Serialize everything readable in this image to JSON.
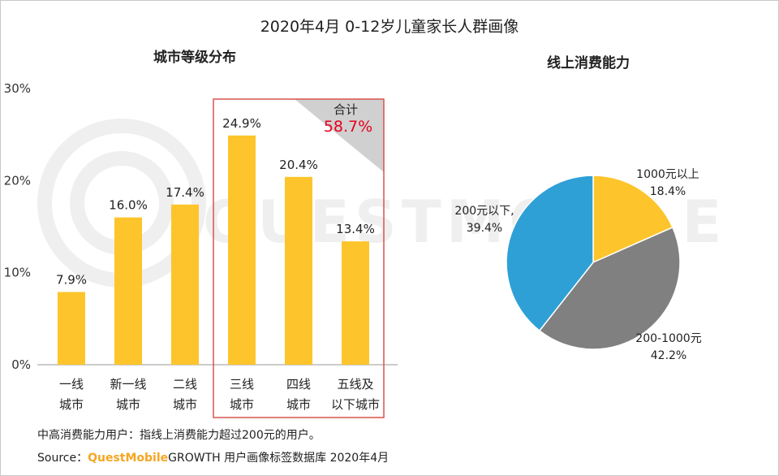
{
  "title": "2020年4月 0-12岁儿童家长人群画像",
  "watermark": "QUESTMOBILE",
  "colors": {
    "bar": "#FDC52B",
    "highlight_border": "#D9534F",
    "total_value": "#E8001C",
    "pie_yellow": "#FDC52B",
    "pie_gray": "#808080",
    "pie_blue": "#2EA0D6"
  },
  "chart_data": [
    {
      "type": "bar",
      "title": "城市等级分布",
      "categories": [
        [
          "一线",
          "城市"
        ],
        [
          "新一线",
          "城市"
        ],
        [
          "二线",
          "城市"
        ],
        [
          "三线",
          "城市"
        ],
        [
          "四线",
          "城市"
        ],
        [
          "五线及",
          "以下城市"
        ]
      ],
      "values": [
        7.9,
        16.0,
        17.4,
        24.9,
        20.4,
        13.4
      ],
      "value_labels": [
        "7.9%",
        "16.0%",
        "17.4%",
        "24.9%",
        "20.4%",
        "13.4%"
      ],
      "yticks": [
        "0%",
        "10%",
        "20%",
        "30%"
      ],
      "ylim": [
        0,
        30
      ],
      "highlight": {
        "from_index": 3,
        "to_index": 5,
        "label": "合计",
        "value": "58.7%"
      }
    },
    {
      "type": "pie",
      "title": "线上消费能力",
      "slices": [
        {
          "name": "1000元以上",
          "value": 18.4,
          "value_label": "18.4%"
        },
        {
          "name": "200-1000元",
          "value": 42.2,
          "value_label": "42.2%"
        },
        {
          "name": "200元以下,",
          "value": 39.4,
          "value_label": "39.4%"
        }
      ]
    }
  ],
  "footnote": "中高消费能力用户：指线上消费能力超过200元的用户。",
  "source": {
    "prefix": "Source：",
    "brand": "QuestMobile",
    "rest": "GROWTH 用户画像标签数据库 2020年4月"
  }
}
